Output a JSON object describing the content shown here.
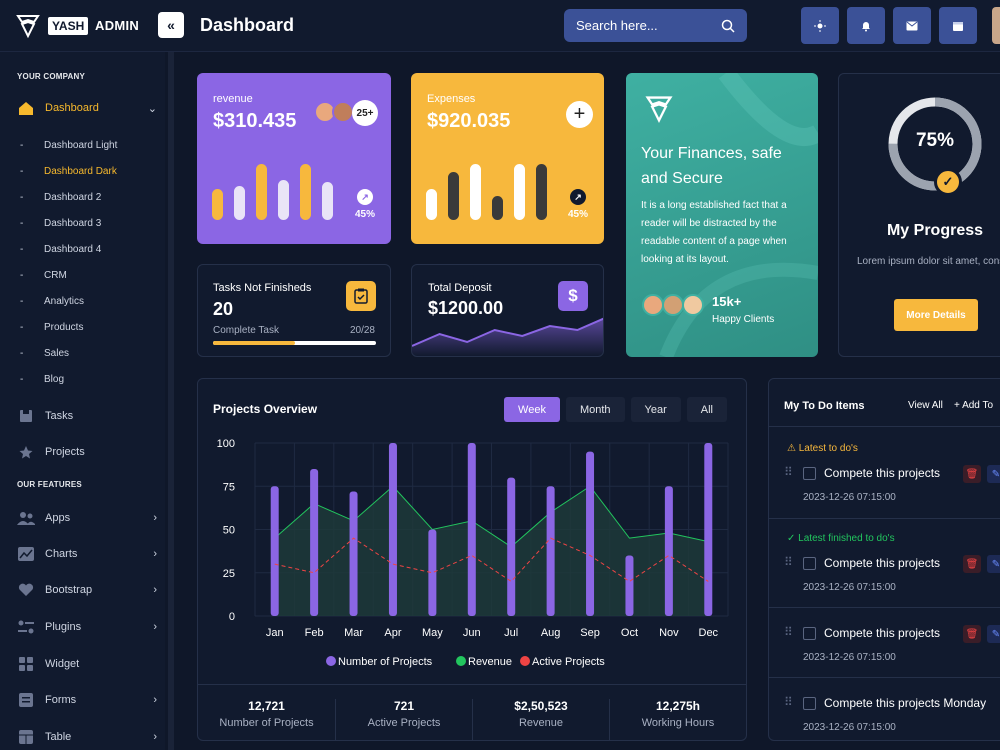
{
  "header": {
    "logo_badge": "YASH",
    "logo_text": "ADMIN",
    "title": "Dashboard",
    "search_placeholder": "Search here..."
  },
  "sidebar": {
    "section1": "YOUR COMPANY",
    "dashboard": "Dashboard",
    "sub": [
      "Dashboard Light",
      "Dashboard Dark",
      "Dashboard 2",
      "Dashboard 3",
      "Dashboard 4",
      "CRM",
      "Analytics",
      "Products",
      "Sales",
      "Blog"
    ],
    "tasks": "Tasks",
    "projects": "Projects",
    "section2": "OUR FEATURES",
    "features": [
      "Apps",
      "Charts",
      "Bootstrap",
      "Plugins",
      "Widget",
      "Forms",
      "Table"
    ]
  },
  "revenue": {
    "label": "revenue",
    "value": "$310.435",
    "badge": "25+",
    "pct": "45%",
    "bars": [
      55,
      60,
      100,
      72,
      100,
      68
    ]
  },
  "expenses": {
    "label": "Expenses",
    "value": "$920.035",
    "pct": "45%",
    "bars": [
      55,
      85,
      100,
      42,
      100,
      100
    ]
  },
  "tasks_card": {
    "label": "Tasks Not Finisheds",
    "value": "20",
    "sub": "Complete Task",
    "count": "20/28",
    "progress": 0.5
  },
  "deposit": {
    "label": "Total Deposit",
    "value": "$1200.00",
    "sparkline": [
      10,
      22,
      14,
      26,
      20,
      30,
      26,
      38
    ]
  },
  "finance": {
    "title": "Your Finances, safe and Secure",
    "text": "It is a long established fact that a reader will be distracted by the readable content of a page when looking at its layout.",
    "clients": "15k+",
    "clients_label": "Happy Clients"
  },
  "progress": {
    "value": "75%",
    "fraction": 0.75,
    "title": "My Progress",
    "text": "Lorem ipsum dolor sit amet, consectetur",
    "button": "More Details"
  },
  "projects": {
    "title": "Projects Overview",
    "tabs": [
      "Week",
      "Month",
      "Year",
      "All"
    ],
    "stats": [
      {
        "v": "12,721",
        "l": "Number of Projects"
      },
      {
        "v": "721",
        "l": "Active Projects"
      },
      {
        "v": "$2,50,523",
        "l": "Revenue"
      },
      {
        "v": "12,275h",
        "l": "Working Hours"
      }
    ]
  },
  "chart_data": {
    "type": "bar",
    "categories": [
      "Jan",
      "Feb",
      "Mar",
      "Apr",
      "May",
      "Jun",
      "Jul",
      "Aug",
      "Sep",
      "Oct",
      "Nov",
      "Dec"
    ],
    "ylim": [
      0,
      100
    ],
    "yticks": [
      0,
      25,
      50,
      75,
      100
    ],
    "series": [
      {
        "name": "Number of Projects",
        "type": "bar",
        "values": [
          75,
          85,
          72,
          100,
          50,
          100,
          80,
          75,
          95,
          35,
          75,
          100
        ],
        "color": "#8b66e4"
      },
      {
        "name": "Revenue",
        "type": "area",
        "values": [
          45,
          65,
          55,
          75,
          50,
          55,
          40,
          60,
          75,
          45,
          48,
          43
        ],
        "color": "#22c55e"
      },
      {
        "name": "Active Projects",
        "type": "line-dashed",
        "values": [
          30,
          25,
          45,
          30,
          25,
          35,
          20,
          45,
          35,
          20,
          35,
          20
        ],
        "color": "#ef4444"
      }
    ],
    "legend": "bottom"
  },
  "todo": {
    "title": "My To Do Items",
    "view_all": "View All",
    "add": "+ Add To",
    "latest": "Latest to do's",
    "finished": "Latest finished to do's",
    "items": [
      {
        "text": "Compete this projects",
        "date": "2023-12-26 07:15:00"
      },
      {
        "text": "Compete this projects",
        "date": "2023-12-26 07:15:00"
      },
      {
        "text": "Compete this projects",
        "date": "2023-12-26 07:15:00"
      },
      {
        "text": "Compete this projects Monday",
        "date": "2023-12-26 07:15:00"
      }
    ]
  }
}
